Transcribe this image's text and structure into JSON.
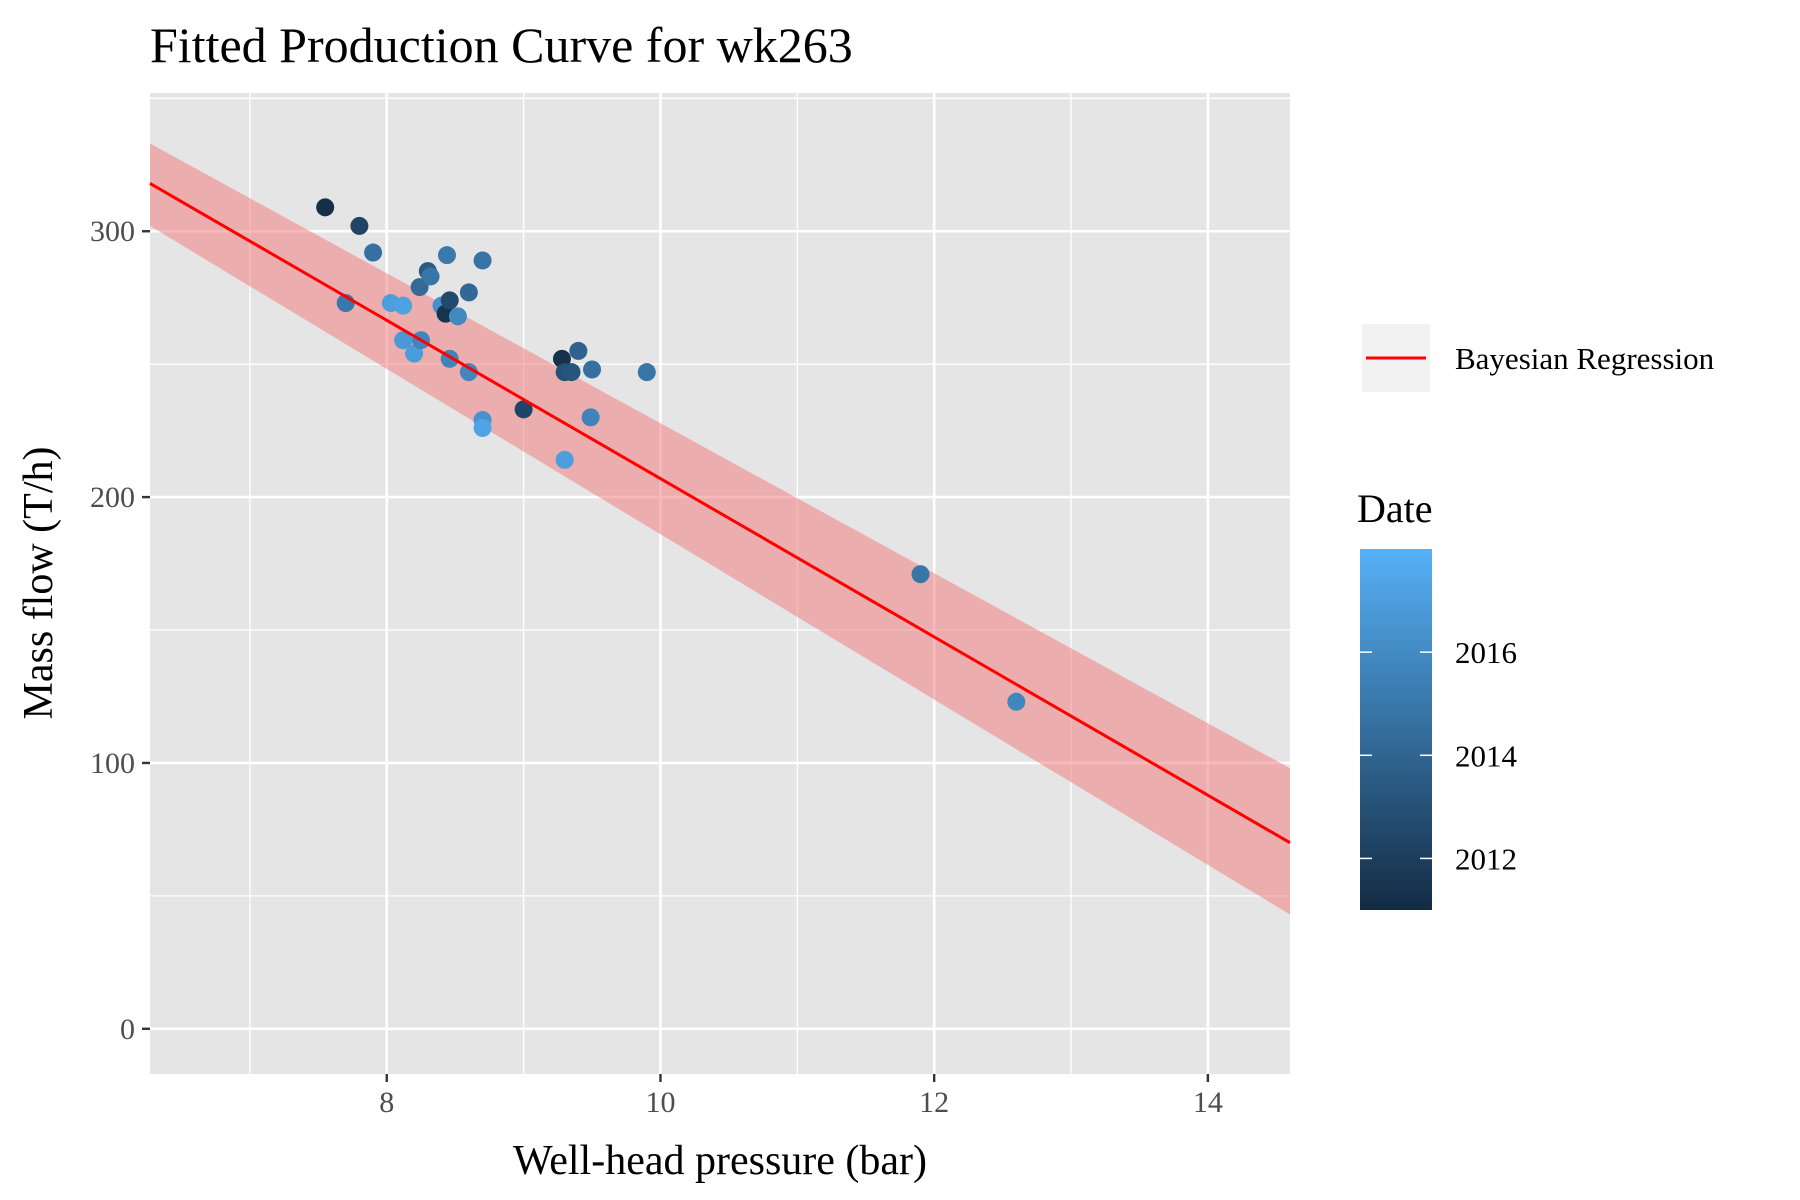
{
  "chart_data": {
    "type": "scatter",
    "title": "Fitted Production Curve for wk263",
    "xlabel": "Well-head pressure (bar)",
    "ylabel": "Mass flow (T/h)",
    "xlim": [
      6.27,
      14.6
    ],
    "ylim": [
      -17,
      352
    ],
    "x_ticks": [
      8,
      10,
      12,
      14
    ],
    "x_minor_ticks": [
      7,
      9,
      11,
      13
    ],
    "y_ticks": [
      0,
      100,
      200,
      300
    ],
    "y_minor_ticks": [
      50,
      150,
      250,
      350
    ],
    "grid": true,
    "legend_position": "right",
    "colors": {
      "panel": "#e5e5e5",
      "grid": "#ffffff",
      "fit_line": "#ff0000",
      "ribbon": "#f08080",
      "date_low": "#132b43",
      "date_high": "#56b1f7"
    },
    "series": [
      {
        "name": "Bayesian Regression",
        "kind": "line",
        "x": [
          6.27,
          14.6
        ],
        "y": [
          318,
          70
        ],
        "ribbon_lower": [
          302,
          43
        ],
        "ribbon_upper": [
          333,
          98
        ]
      }
    ],
    "points": {
      "color_by": "Date",
      "x": [
        7.55,
        7.8,
        7.9,
        7.7,
        8.03,
        8.12,
        8.12,
        8.2,
        8.25,
        8.24,
        8.3,
        8.32,
        8.4,
        8.43,
        8.44,
        8.46,
        8.46,
        8.52,
        8.6,
        8.6,
        8.7,
        8.7,
        8.7,
        9.0,
        9.28,
        9.3,
        9.3,
        9.35,
        9.4,
        9.49,
        9.5,
        9.9,
        11.9,
        12.6
      ],
      "y": [
        309,
        302,
        292,
        273,
        273,
        272,
        259,
        254,
        259,
        279,
        285,
        283,
        272,
        269,
        291,
        274,
        252,
        268,
        277,
        247,
        289,
        229,
        226,
        233,
        252,
        247,
        214,
        247,
        255,
        230,
        248,
        247,
        171,
        123
      ],
      "date": [
        2011.2,
        2012.3,
        2014.6,
        2015.0,
        2017.0,
        2017.2,
        2016.7,
        2016.9,
        2015.7,
        2014.3,
        2013.4,
        2014.9,
        2016.3,
        2011.4,
        2015.1,
        2012.6,
        2015.6,
        2015.9,
        2014.2,
        2015.8,
        2014.8,
        2016.4,
        2017.3,
        2012.4,
        2011.3,
        2013.0,
        2017.0,
        2013.2,
        2013.9,
        2015.6,
        2014.6,
        2014.9,
        2014.9,
        2015.8
      ]
    },
    "colorbar": {
      "title": "Date",
      "range": [
        2011,
        2018
      ],
      "ticks": [
        2012,
        2014,
        2016
      ]
    }
  }
}
